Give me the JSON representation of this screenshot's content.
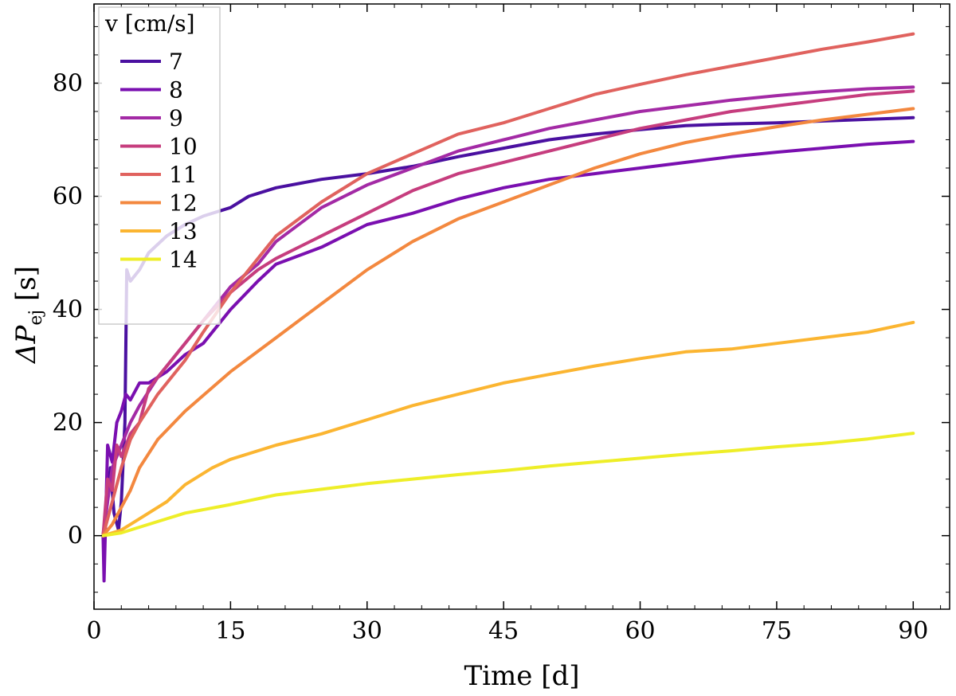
{
  "chart_data": {
    "type": "line",
    "xlabel": "Time [d]",
    "ylabel": "ΔP",
    "ylabel_sub": "ej",
    "ylabel_unit": " [s]",
    "xlim": [
      0,
      94
    ],
    "ylim": [
      -13,
      94
    ],
    "xticks": [
      0,
      15,
      30,
      45,
      60,
      75,
      90
    ],
    "yticks": [
      0,
      20,
      40,
      60,
      80
    ],
    "legend": {
      "title": "v [cm/s]",
      "position": "top-left"
    },
    "series": [
      {
        "name": "7",
        "color": "#4a10a0",
        "points": [
          [
            1,
            0
          ],
          [
            1.8,
            12
          ],
          [
            2.2,
            4
          ],
          [
            2.7,
            1
          ],
          [
            3,
            6
          ],
          [
            3.4,
            20
          ],
          [
            3.6,
            47
          ],
          [
            4,
            45
          ],
          [
            5,
            47
          ],
          [
            6,
            50
          ],
          [
            8,
            53
          ],
          [
            10,
            55
          ],
          [
            12,
            56.5
          ],
          [
            15,
            58
          ],
          [
            17,
            60
          ],
          [
            20,
            61.5
          ],
          [
            25,
            63
          ],
          [
            30,
            64
          ],
          [
            35,
            65.3
          ],
          [
            40,
            67
          ],
          [
            45,
            68.5
          ],
          [
            50,
            70
          ],
          [
            55,
            71
          ],
          [
            60,
            71.8
          ],
          [
            65,
            72.5
          ],
          [
            70,
            72.8
          ],
          [
            75,
            73
          ],
          [
            80,
            73.3
          ],
          [
            85,
            73.6
          ],
          [
            90,
            73.9
          ]
        ]
      },
      {
        "name": "8",
        "color": "#7a0fb0",
        "points": [
          [
            1,
            0
          ],
          [
            1.1,
            -8
          ],
          [
            1.5,
            16
          ],
          [
            2,
            13
          ],
          [
            2.5,
            20
          ],
          [
            3,
            22
          ],
          [
            3.5,
            25
          ],
          [
            4,
            24
          ],
          [
            5,
            27
          ],
          [
            6,
            27
          ],
          [
            8,
            29
          ],
          [
            10,
            32
          ],
          [
            12,
            34
          ],
          [
            15,
            40
          ],
          [
            18,
            45
          ],
          [
            20,
            48
          ],
          [
            25,
            51
          ],
          [
            30,
            55
          ],
          [
            35,
            57
          ],
          [
            40,
            59.5
          ],
          [
            45,
            61.5
          ],
          [
            50,
            63
          ],
          [
            55,
            64
          ],
          [
            60,
            65
          ],
          [
            65,
            66
          ],
          [
            70,
            67
          ],
          [
            75,
            67.8
          ],
          [
            80,
            68.5
          ],
          [
            85,
            69.2
          ],
          [
            90,
            69.7
          ]
        ]
      },
      {
        "name": "9",
        "color": "#a32aa5",
        "points": [
          [
            1,
            0
          ],
          [
            1.5,
            6
          ],
          [
            2,
            12
          ],
          [
            3,
            16
          ],
          [
            4,
            20
          ],
          [
            5,
            23
          ],
          [
            7,
            28
          ],
          [
            10,
            34
          ],
          [
            13,
            40
          ],
          [
            15,
            44
          ],
          [
            18,
            48
          ],
          [
            20,
            52
          ],
          [
            25,
            58
          ],
          [
            30,
            62
          ],
          [
            35,
            65
          ],
          [
            40,
            68
          ],
          [
            45,
            70
          ],
          [
            50,
            72
          ],
          [
            55,
            73.5
          ],
          [
            60,
            75
          ],
          [
            65,
            76
          ],
          [
            70,
            77
          ],
          [
            75,
            77.8
          ],
          [
            80,
            78.5
          ],
          [
            85,
            79
          ],
          [
            90,
            79.3
          ]
        ]
      },
      {
        "name": "10",
        "color": "#c63d7e",
        "points": [
          [
            1,
            0
          ],
          [
            1.5,
            10
          ],
          [
            2,
            8
          ],
          [
            2.5,
            16
          ],
          [
            3,
            14
          ],
          [
            4,
            18
          ],
          [
            5,
            20
          ],
          [
            6,
            26
          ],
          [
            8,
            30
          ],
          [
            10,
            34
          ],
          [
            12,
            38
          ],
          [
            15,
            43
          ],
          [
            18,
            47
          ],
          [
            20,
            49
          ],
          [
            25,
            53
          ],
          [
            30,
            57
          ],
          [
            35,
            61
          ],
          [
            40,
            64
          ],
          [
            45,
            66
          ],
          [
            50,
            68
          ],
          [
            55,
            70
          ],
          [
            60,
            72
          ],
          [
            65,
            73.5
          ],
          [
            70,
            75
          ],
          [
            75,
            76
          ],
          [
            80,
            77
          ],
          [
            85,
            78
          ],
          [
            90,
            78.6
          ]
        ]
      },
      {
        "name": "11",
        "color": "#e0625e",
        "points": [
          [
            1,
            0
          ],
          [
            2,
            6
          ],
          [
            3,
            12
          ],
          [
            4,
            17
          ],
          [
            5,
            20
          ],
          [
            7,
            25
          ],
          [
            10,
            31
          ],
          [
            12,
            36
          ],
          [
            15,
            43
          ],
          [
            18,
            49
          ],
          [
            20,
            53
          ],
          [
            25,
            59
          ],
          [
            30,
            64
          ],
          [
            35,
            67.5
          ],
          [
            40,
            71
          ],
          [
            45,
            73
          ],
          [
            50,
            75.5
          ],
          [
            55,
            78
          ],
          [
            60,
            79.8
          ],
          [
            65,
            81.5
          ],
          [
            70,
            83
          ],
          [
            75,
            84.5
          ],
          [
            80,
            86
          ],
          [
            85,
            87.3
          ],
          [
            90,
            88.7
          ]
        ]
      },
      {
        "name": "12",
        "color": "#f3883f",
        "points": [
          [
            1,
            0
          ],
          [
            2,
            2
          ],
          [
            3,
            5
          ],
          [
            4,
            8
          ],
          [
            5,
            12
          ],
          [
            7,
            17
          ],
          [
            10,
            22
          ],
          [
            15,
            29
          ],
          [
            20,
            35
          ],
          [
            25,
            41
          ],
          [
            30,
            47
          ],
          [
            35,
            52
          ],
          [
            40,
            56
          ],
          [
            45,
            59
          ],
          [
            50,
            62
          ],
          [
            55,
            65
          ],
          [
            60,
            67.5
          ],
          [
            65,
            69.5
          ],
          [
            70,
            71
          ],
          [
            75,
            72.3
          ],
          [
            80,
            73.5
          ],
          [
            85,
            74.5
          ],
          [
            90,
            75.5
          ]
        ]
      },
      {
        "name": "13",
        "color": "#fbb531",
        "points": [
          [
            1,
            0
          ],
          [
            3,
            1
          ],
          [
            5,
            3
          ],
          [
            8,
            6
          ],
          [
            10,
            9
          ],
          [
            13,
            12
          ],
          [
            15,
            13.5
          ],
          [
            20,
            16
          ],
          [
            25,
            18
          ],
          [
            30,
            20.5
          ],
          [
            35,
            23
          ],
          [
            40,
            25
          ],
          [
            45,
            27
          ],
          [
            50,
            28.5
          ],
          [
            55,
            30
          ],
          [
            60,
            31.3
          ],
          [
            65,
            32.5
          ],
          [
            70,
            33
          ],
          [
            75,
            34
          ],
          [
            80,
            35
          ],
          [
            85,
            36
          ],
          [
            90,
            37.7
          ]
        ]
      },
      {
        "name": "14",
        "color": "#eeee28",
        "points": [
          [
            1,
            0
          ],
          [
            3,
            0.5
          ],
          [
            5,
            1.5
          ],
          [
            8,
            3
          ],
          [
            10,
            4
          ],
          [
            15,
            5.5
          ],
          [
            20,
            7.2
          ],
          [
            25,
            8.2
          ],
          [
            30,
            9.2
          ],
          [
            35,
            10
          ],
          [
            40,
            10.8
          ],
          [
            45,
            11.5
          ],
          [
            50,
            12.3
          ],
          [
            55,
            13
          ],
          [
            60,
            13.7
          ],
          [
            65,
            14.4
          ],
          [
            70,
            15
          ],
          [
            75,
            15.7
          ],
          [
            80,
            16.3
          ],
          [
            85,
            17.1
          ],
          [
            90,
            18.1
          ]
        ]
      }
    ]
  }
}
